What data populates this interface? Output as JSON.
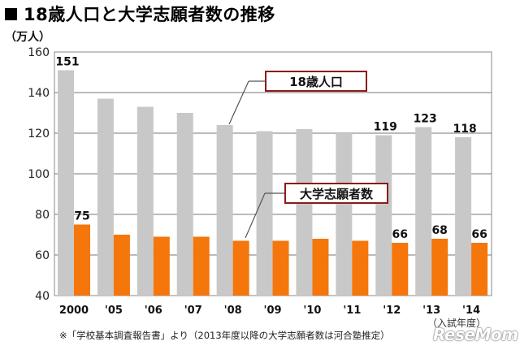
{
  "header": {
    "title": "18歳人口と大学志願者数の推移",
    "unit": "（万人）"
  },
  "footnote": "※「学校基本調査報告書」より（2013年度以降の大学志願者数は河合塾推定）",
  "xaxis_title": "（入試年度）",
  "watermark": "ReseMom",
  "colors": {
    "population": "#c8c8c8",
    "applicants": "#f5760a",
    "callout_border": "#8b1a1a"
  },
  "chart_data": {
    "type": "bar",
    "categories": [
      "2000",
      "'05",
      "'06",
      "'07",
      "'08",
      "'09",
      "'10",
      "'11",
      "'12",
      "'13",
      "'14"
    ],
    "series": [
      {
        "name": "18歳人口",
        "values": [
          151,
          137,
          133,
          130,
          124,
          121,
          122,
          120,
          119,
          123,
          118
        ]
      },
      {
        "name": "大学志願者数",
        "values": [
          75,
          70,
          69,
          69,
          67,
          67,
          68,
          67,
          66,
          68,
          66
        ]
      }
    ],
    "data_labels": [
      {
        "series": 0,
        "index": 0,
        "text": "151"
      },
      {
        "series": 0,
        "index": 8,
        "text": "119"
      },
      {
        "series": 0,
        "index": 9,
        "text": "123"
      },
      {
        "series": 0,
        "index": 10,
        "text": "118"
      },
      {
        "series": 1,
        "index": 0,
        "text": "75"
      },
      {
        "series": 1,
        "index": 8,
        "text": "66"
      },
      {
        "series": 1,
        "index": 9,
        "text": "68"
      },
      {
        "series": 1,
        "index": 10,
        "text": "66"
      }
    ],
    "yticks": [
      "40",
      "60",
      "80",
      "100",
      "120",
      "140",
      "160"
    ],
    "ylim": [
      40,
      160
    ],
    "grid": true,
    "xlabel": "（入試年度）",
    "ylabel": "（万人）",
    "callouts": [
      {
        "series": 0,
        "text": "18歳人口"
      },
      {
        "series": 1,
        "text": "大学志願者数"
      }
    ]
  }
}
